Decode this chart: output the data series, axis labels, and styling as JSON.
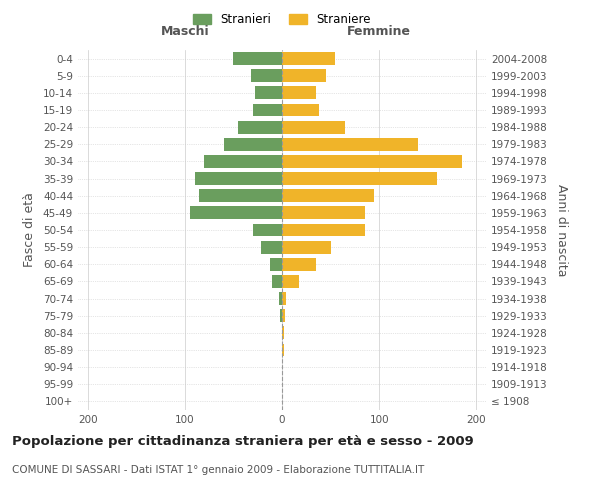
{
  "age_groups": [
    "100+",
    "95-99",
    "90-94",
    "85-89",
    "80-84",
    "75-79",
    "70-74",
    "65-69",
    "60-64",
    "55-59",
    "50-54",
    "45-49",
    "40-44",
    "35-39",
    "30-34",
    "25-29",
    "20-24",
    "15-19",
    "10-14",
    "5-9",
    "0-4"
  ],
  "birth_years": [
    "≤ 1908",
    "1909-1913",
    "1914-1918",
    "1919-1923",
    "1924-1928",
    "1929-1933",
    "1934-1938",
    "1939-1943",
    "1944-1948",
    "1949-1953",
    "1954-1958",
    "1959-1963",
    "1964-1968",
    "1969-1973",
    "1974-1978",
    "1979-1983",
    "1984-1988",
    "1989-1993",
    "1994-1998",
    "1999-2003",
    "2004-2008"
  ],
  "maschi": [
    0,
    0,
    0,
    0,
    0,
    2,
    3,
    10,
    12,
    22,
    30,
    95,
    85,
    90,
    80,
    60,
    45,
    30,
    28,
    32,
    50
  ],
  "femmine": [
    0,
    0,
    0,
    2,
    2,
    3,
    4,
    18,
    35,
    50,
    85,
    85,
    95,
    160,
    185,
    140,
    65,
    38,
    35,
    45,
    55
  ],
  "maschi_color": "#6a9e5e",
  "femmine_color": "#f0b429",
  "background_color": "#ffffff",
  "grid_color": "#cccccc",
  "title": "Popolazione per cittadinanza straniera per età e sesso - 2009",
  "subtitle": "COMUNE DI SASSARI - Dati ISTAT 1° gennaio 2009 - Elaborazione TUTTITALIA.IT",
  "xlabel_maschi": "Maschi",
  "xlabel_femmine": "Femmine",
  "ylabel_left": "Fasce di età",
  "ylabel_right": "Anni di nascita",
  "legend_maschi": "Stranieri",
  "legend_femmine": "Straniere",
  "xlim": 210,
  "title_fontsize": 9.5,
  "subtitle_fontsize": 7.5,
  "tick_fontsize": 7.5,
  "label_fontsize": 9
}
